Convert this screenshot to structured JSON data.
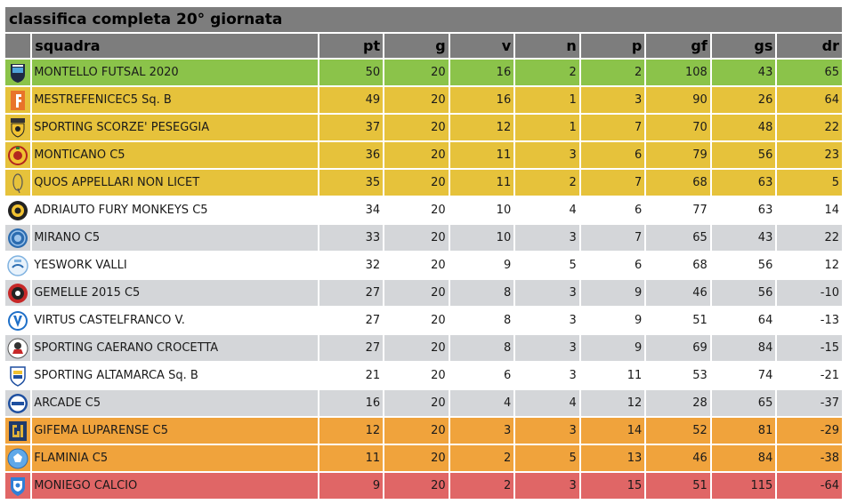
{
  "title": "classifica completa 20° giornata",
  "headers": {
    "team": "squadra",
    "pt": "pt",
    "g": "g",
    "v": "v",
    "n": "n",
    "p": "p",
    "gf": "gf",
    "gs": "gs",
    "dr": "dr"
  },
  "zone_colors": {
    "green": "#8bc34a",
    "yellow": "#e6c23b",
    "white": "#ffffff",
    "grey": "#d4d6d9",
    "orange": "#f0a33c",
    "red": "#e06666"
  },
  "rows": [
    {
      "team": "MONTELLO FUTSAL 2020",
      "pt": "50",
      "g": "20",
      "v": "16",
      "n": "2",
      "p": "2",
      "gf": "108",
      "gs": "43",
      "dr": "65",
      "zone": "green",
      "logo": "shield-navy-icon"
    },
    {
      "team": "MESTREFENICEC5 Sq. B",
      "pt": "49",
      "g": "20",
      "v": "16",
      "n": "1",
      "p": "3",
      "gf": "90",
      "gs": "26",
      "dr": "64",
      "zone": "yellow",
      "logo": "orange-f-icon"
    },
    {
      "team": "SPORTING SCORZE' PESEGGIA",
      "pt": "37",
      "g": "20",
      "v": "12",
      "n": "1",
      "p": "7",
      "gf": "70",
      "gs": "48",
      "dr": "22",
      "zone": "yellow",
      "logo": "shield-yellow-icon"
    },
    {
      "team": "MONTICANO C5",
      "pt": "36",
      "g": "20",
      "v": "11",
      "n": "3",
      "p": "6",
      "gf": "79",
      "gs": "56",
      "dr": "23",
      "zone": "yellow",
      "logo": "round-red-yellow-icon"
    },
    {
      "team": "QUOS APPELLARI NON LICET",
      "pt": "35",
      "g": "20",
      "v": "11",
      "n": "2",
      "p": "7",
      "gf": "68",
      "gs": "63",
      "dr": "5",
      "zone": "yellow",
      "logo": "oval-outline-icon"
    },
    {
      "team": "ADRIAUTO FURY MONKEYS C5",
      "pt": "34",
      "g": "20",
      "v": "10",
      "n": "4",
      "p": "6",
      "gf": "77",
      "gs": "63",
      "dr": "14",
      "zone": "white",
      "logo": "round-black-yellow-icon"
    },
    {
      "team": "MIRANO C5",
      "pt": "33",
      "g": "20",
      "v": "10",
      "n": "3",
      "p": "7",
      "gf": "65",
      "gs": "43",
      "dr": "22",
      "zone": "grey",
      "logo": "round-blue-icon"
    },
    {
      "team": "YESWORK VALLI",
      "pt": "32",
      "g": "20",
      "v": "9",
      "n": "5",
      "p": "6",
      "gf": "68",
      "gs": "56",
      "dr": "12",
      "zone": "white",
      "logo": "round-lightblue-icon"
    },
    {
      "team": "GEMELLE 2015 C5",
      "pt": "27",
      "g": "20",
      "v": "8",
      "n": "3",
      "p": "9",
      "gf": "46",
      "gs": "56",
      "dr": "-10",
      "zone": "grey",
      "logo": "round-red-black-icon"
    },
    {
      "team": "VIRTUS CASTELFRANCO V.",
      "pt": "27",
      "g": "20",
      "v": "8",
      "n": "3",
      "p": "9",
      "gf": "51",
      "gs": "64",
      "dr": "-13",
      "zone": "white",
      "logo": "round-blue-v-icon"
    },
    {
      "team": "SPORTING CAERANO CROCETTA",
      "pt": "27",
      "g": "20",
      "v": "8",
      "n": "3",
      "p": "9",
      "gf": "69",
      "gs": "84",
      "dr": "-15",
      "zone": "grey",
      "logo": "round-white-red-icon"
    },
    {
      "team": "SPORTING ALTAMARCA Sq. B",
      "pt": "21",
      "g": "20",
      "v": "6",
      "n": "3",
      "p": "11",
      "gf": "53",
      "gs": "74",
      "dr": "-21",
      "zone": "white",
      "logo": "shield-blue-yellow-icon"
    },
    {
      "team": "ARCADE C5",
      "pt": "16",
      "g": "20",
      "v": "4",
      "n": "4",
      "p": "12",
      "gf": "28",
      "gs": "65",
      "dr": "-37",
      "zone": "grey",
      "logo": "round-arcade-icon"
    },
    {
      "team": "GIFEMA LUPARENSE C5",
      "pt": "12",
      "g": "20",
      "v": "3",
      "n": "3",
      "p": "14",
      "gf": "52",
      "gs": "81",
      "dr": "-29",
      "zone": "orange",
      "logo": "shield-navy-gold-icon"
    },
    {
      "team": "FLAMINIA C5",
      "pt": "11",
      "g": "20",
      "v": "2",
      "n": "5",
      "p": "13",
      "gf": "46",
      "gs": "84",
      "dr": "-38",
      "zone": "orange",
      "logo": "ball-blue-icon"
    },
    {
      "team": "MONIEGO CALCIO",
      "pt": "9",
      "g": "20",
      "v": "2",
      "n": "3",
      "p": "15",
      "gf": "51",
      "gs": "115",
      "dr": "-64",
      "zone": "red",
      "logo": "shield-blue-white-icon"
    }
  ]
}
